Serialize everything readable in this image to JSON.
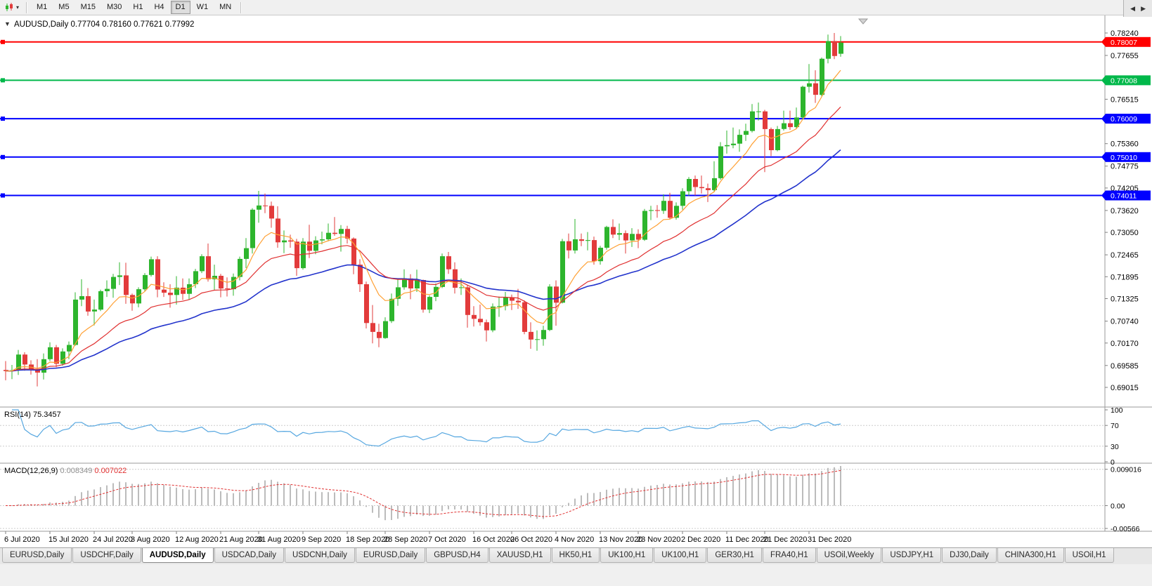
{
  "icons": {
    "menu_arrow": "▼",
    "toolbar_dropdown": "▾",
    "tab_scroll_left": "◀",
    "tab_scroll_right": "▶"
  },
  "toolbar": {
    "timeframes": [
      "M1",
      "M5",
      "M15",
      "M30",
      "H1",
      "H4",
      "D1",
      "W1",
      "MN"
    ],
    "active_timeframe": "D1"
  },
  "chart": {
    "title": "AUDUSD,Daily",
    "ohlc": "0.77704 0.78160 0.77621 0.77992"
  },
  "chart_data": {
    "type": "candlestick",
    "symbol": "AUDUSD",
    "timeframe": "Daily",
    "current_bar": {
      "open": "0.77704",
      "high": "0.78160",
      "low": "0.77621",
      "close": "0.77992"
    },
    "bull_color": "#2db52d",
    "bear_color": "#e23b3b",
    "y_ticks": [
      "0.78240",
      "0.77655",
      "0.76515",
      "0.75360",
      "0.74775",
      "0.74205",
      "0.73620",
      "0.73050",
      "0.72465",
      "0.71895",
      "0.71325",
      "0.70740",
      "0.70170",
      "0.69585",
      "0.69015"
    ],
    "hlines": [
      {
        "price": 0.78007,
        "label": "0.78007",
        "color": "#ff0000"
      },
      {
        "price": 0.77008,
        "label": "0.77008",
        "color": "#00b84a"
      },
      {
        "price": 0.76009,
        "label": "0.76009",
        "color": "#0000ff"
      },
      {
        "price": 0.7501,
        "label": "0.75010",
        "color": "#0000ff"
      },
      {
        "price": 0.74011,
        "label": "0.74011",
        "color": "#0000ff"
      }
    ],
    "moving_averages": [
      {
        "name": "slow",
        "period": 40,
        "color": "#2233cc",
        "width": 1.6
      },
      {
        "name": "mid",
        "period": 20,
        "color": "#e03030",
        "width": 1.2
      },
      {
        "name": "fast",
        "period": 8,
        "color": "#ffa033",
        "width": 1.2
      }
    ],
    "rsi": {
      "label": "RSI(14)",
      "value": "75.3457",
      "period": 14,
      "levels": [
        "100",
        "70",
        "30",
        "0"
      ],
      "dashed_levels": [
        70,
        30
      ],
      "color": "#56a7e0"
    },
    "macd": {
      "label": "MACD(12,26,9)",
      "macd_value": "0.008349",
      "signal_value": "0.007022",
      "axis": [
        "0.009016",
        "0.00",
        "-0.00566"
      ],
      "histogram_color": "#bcbcbc",
      "signal_color": "#e03030"
    },
    "x_labels": [
      {
        "index": 0,
        "label": "6 Jul 2020"
      },
      {
        "index": 7,
        "label": "15 Jul 2020"
      },
      {
        "index": 14,
        "label": "24 Jul 2020"
      },
      {
        "index": 20,
        "label": "3 Aug 2020"
      },
      {
        "index": 27,
        "label": "12 Aug 2020"
      },
      {
        "index": 34,
        "label": "21 Aug 2020"
      },
      {
        "index": 40,
        "label": "31 Aug 2020"
      },
      {
        "index": 47,
        "label": "9 Sep 2020"
      },
      {
        "index": 54,
        "label": "18 Sep 2020"
      },
      {
        "index": 60,
        "label": "28 Sep 2020"
      },
      {
        "index": 67,
        "label": "7 Oct 2020"
      },
      {
        "index": 74,
        "label": "16 Oct 2020"
      },
      {
        "index": 80,
        "label": "26 Oct 2020"
      },
      {
        "index": 87,
        "label": "4 Nov 2020"
      },
      {
        "index": 94,
        "label": "13 Nov 2020"
      },
      {
        "index": 100,
        "label": "23 Nov 2020"
      },
      {
        "index": 107,
        "label": "2 Dec 2020"
      },
      {
        "index": 114,
        "label": "11 Dec 2020"
      },
      {
        "index": 120,
        "label": "21 Dec 2020"
      },
      {
        "index": 127,
        "label": "31 Dec 2020"
      }
    ],
    "candles": [
      [
        0.6947,
        0.697,
        0.692,
        0.6944
      ],
      [
        0.6944,
        0.696,
        0.6923,
        0.6946
      ],
      [
        0.6946,
        0.6999,
        0.6934,
        0.6987
      ],
      [
        0.6987,
        0.6993,
        0.6945,
        0.6961
      ],
      [
        0.6961,
        0.6972,
        0.6935,
        0.6949
      ],
      [
        0.6949,
        0.6975,
        0.6904,
        0.694
      ],
      [
        0.694,
        0.699,
        0.6922,
        0.6975
      ],
      [
        0.6975,
        0.7019,
        0.697,
        0.7006
      ],
      [
        0.7006,
        0.7012,
        0.6954,
        0.6963
      ],
      [
        0.6963,
        0.7003,
        0.6958,
        0.6995
      ],
      [
        0.6995,
        0.7021,
        0.6975,
        0.7012
      ],
      [
        0.7012,
        0.7149,
        0.701,
        0.713
      ],
      [
        0.713,
        0.7183,
        0.7113,
        0.7139
      ],
      [
        0.7139,
        0.716,
        0.7088,
        0.7099
      ],
      [
        0.7099,
        0.713,
        0.7063,
        0.7104
      ],
      [
        0.7104,
        0.7156,
        0.71,
        0.7152
      ],
      [
        0.7152,
        0.718,
        0.7137,
        0.7158
      ],
      [
        0.7158,
        0.7197,
        0.7135,
        0.7189
      ],
      [
        0.7189,
        0.7227,
        0.7168,
        0.7193
      ],
      [
        0.7193,
        0.7226,
        0.7119,
        0.7142
      ],
      [
        0.7142,
        0.7146,
        0.7101,
        0.712
      ],
      [
        0.712,
        0.7162,
        0.711,
        0.7157
      ],
      [
        0.7157,
        0.7199,
        0.7151,
        0.7194
      ],
      [
        0.7194,
        0.7242,
        0.719,
        0.7235
      ],
      [
        0.7235,
        0.7243,
        0.7136,
        0.7156
      ],
      [
        0.7156,
        0.7175,
        0.7137,
        0.7148
      ],
      [
        0.7148,
        0.717,
        0.7109,
        0.7142
      ],
      [
        0.7142,
        0.7191,
        0.7117,
        0.7161
      ],
      [
        0.7161,
        0.7185,
        0.7129,
        0.7145
      ],
      [
        0.7145,
        0.7185,
        0.713,
        0.717
      ],
      [
        0.717,
        0.721,
        0.716,
        0.7204
      ],
      [
        0.7204,
        0.7248,
        0.7199,
        0.7243
      ],
      [
        0.7243,
        0.7276,
        0.7177,
        0.7183
      ],
      [
        0.7183,
        0.7221,
        0.7155,
        0.7192
      ],
      [
        0.7192,
        0.7197,
        0.7136,
        0.7159
      ],
      [
        0.7159,
        0.7188,
        0.7138,
        0.7157
      ],
      [
        0.7157,
        0.7198,
        0.714,
        0.7189
      ],
      [
        0.7189,
        0.7242,
        0.718,
        0.7236
      ],
      [
        0.7236,
        0.729,
        0.7212,
        0.7264
      ],
      [
        0.7264,
        0.7368,
        0.725,
        0.7364
      ],
      [
        0.7364,
        0.7413,
        0.733,
        0.7375
      ],
      [
        0.7375,
        0.7406,
        0.7355,
        0.7374
      ],
      [
        0.7374,
        0.7385,
        0.7317,
        0.7341
      ],
      [
        0.7341,
        0.7373,
        0.7265,
        0.7279
      ],
      [
        0.7279,
        0.731,
        0.7251,
        0.7284
      ],
      [
        0.7284,
        0.7299,
        0.7265,
        0.7281
      ],
      [
        0.7281,
        0.7288,
        0.7192,
        0.7212
      ],
      [
        0.7212,
        0.729,
        0.7208,
        0.7281
      ],
      [
        0.7281,
        0.7325,
        0.7238,
        0.7257
      ],
      [
        0.7257,
        0.7295,
        0.7248,
        0.7284
      ],
      [
        0.7284,
        0.7307,
        0.7274,
        0.7287
      ],
      [
        0.7287,
        0.7328,
        0.7282,
        0.7304
      ],
      [
        0.7304,
        0.7345,
        0.7296,
        0.7301
      ],
      [
        0.7301,
        0.7324,
        0.7255,
        0.7314
      ],
      [
        0.7314,
        0.7322,
        0.7276,
        0.7289
      ],
      [
        0.7289,
        0.7292,
        0.7196,
        0.7221
      ],
      [
        0.7221,
        0.7235,
        0.715,
        0.717
      ],
      [
        0.717,
        0.7177,
        0.7055,
        0.7069
      ],
      [
        0.7069,
        0.7116,
        0.7016,
        0.7046
      ],
      [
        0.7046,
        0.7067,
        0.7006,
        0.703
      ],
      [
        0.703,
        0.7084,
        0.7028,
        0.7074
      ],
      [
        0.7074,
        0.7146,
        0.7069,
        0.7132
      ],
      [
        0.7132,
        0.7185,
        0.7114,
        0.7162
      ],
      [
        0.7162,
        0.7209,
        0.7156,
        0.7185
      ],
      [
        0.7185,
        0.7196,
        0.7131,
        0.7159
      ],
      [
        0.7159,
        0.7208,
        0.715,
        0.7181
      ],
      [
        0.7181,
        0.7182,
        0.7096,
        0.7104
      ],
      [
        0.7104,
        0.7141,
        0.7095,
        0.7137
      ],
      [
        0.7137,
        0.7172,
        0.7126,
        0.7163
      ],
      [
        0.7163,
        0.725,
        0.716,
        0.7243
      ],
      [
        0.7243,
        0.7254,
        0.7197,
        0.7209
      ],
      [
        0.7209,
        0.7227,
        0.7146,
        0.7161
      ],
      [
        0.7161,
        0.7185,
        0.7142,
        0.7162
      ],
      [
        0.7162,
        0.7168,
        0.7057,
        0.709
      ],
      [
        0.709,
        0.7113,
        0.706,
        0.708
      ],
      [
        0.708,
        0.7117,
        0.7062,
        0.7071
      ],
      [
        0.7071,
        0.7078,
        0.7021,
        0.705
      ],
      [
        0.705,
        0.712,
        0.7045,
        0.7112
      ],
      [
        0.7112,
        0.7138,
        0.7085,
        0.7113
      ],
      [
        0.7113,
        0.715,
        0.7102,
        0.7136
      ],
      [
        0.7136,
        0.7143,
        0.7103,
        0.7127
      ],
      [
        0.7127,
        0.7158,
        0.7106,
        0.7123
      ],
      [
        0.7123,
        0.7128,
        0.704,
        0.7046
      ],
      [
        0.7046,
        0.7071,
        0.7002,
        0.7026
      ],
      [
        0.7026,
        0.705,
        0.6997,
        0.7027
      ],
      [
        0.7027,
        0.7062,
        0.701,
        0.7051
      ],
      [
        0.7051,
        0.717,
        0.7048,
        0.7164
      ],
      [
        0.7164,
        0.718,
        0.7062,
        0.7122
      ],
      [
        0.7122,
        0.7288,
        0.712,
        0.7282
      ],
      [
        0.7282,
        0.7302,
        0.7237,
        0.7258
      ],
      [
        0.7258,
        0.734,
        0.725,
        0.7287
      ],
      [
        0.7287,
        0.7302,
        0.7269,
        0.7283
      ],
      [
        0.7283,
        0.7306,
        0.7258,
        0.7285
      ],
      [
        0.7285,
        0.7294,
        0.7221,
        0.723
      ],
      [
        0.723,
        0.727,
        0.7221,
        0.7265
      ],
      [
        0.7265,
        0.7322,
        0.726,
        0.7319
      ],
      [
        0.7319,
        0.7339,
        0.729,
        0.7299
      ],
      [
        0.7299,
        0.7328,
        0.7285,
        0.7303
      ],
      [
        0.7303,
        0.731,
        0.725,
        0.7284
      ],
      [
        0.7284,
        0.7316,
        0.7267,
        0.7301
      ],
      [
        0.7301,
        0.7313,
        0.7264,
        0.7286
      ],
      [
        0.7286,
        0.7366,
        0.7283,
        0.7361
      ],
      [
        0.7361,
        0.7374,
        0.7337,
        0.7363
      ],
      [
        0.7363,
        0.7376,
        0.7343,
        0.7361
      ],
      [
        0.7361,
        0.7404,
        0.7353,
        0.7387
      ],
      [
        0.7387,
        0.7408,
        0.7339,
        0.7343
      ],
      [
        0.7343,
        0.7383,
        0.7338,
        0.7374
      ],
      [
        0.7374,
        0.742,
        0.7364,
        0.7412
      ],
      [
        0.7412,
        0.7449,
        0.74,
        0.7444
      ],
      [
        0.7444,
        0.7453,
        0.7401,
        0.7423
      ],
      [
        0.7423,
        0.7453,
        0.7406,
        0.742
      ],
      [
        0.742,
        0.7432,
        0.7384,
        0.7415
      ],
      [
        0.7415,
        0.749,
        0.741,
        0.7446
      ],
      [
        0.7446,
        0.754,
        0.7442,
        0.7529
      ],
      [
        0.7529,
        0.757,
        0.751,
        0.7532
      ],
      [
        0.7532,
        0.7578,
        0.7524,
        0.7536
      ],
      [
        0.7536,
        0.7573,
        0.7515,
        0.7559
      ],
      [
        0.7559,
        0.7588,
        0.7543,
        0.7569
      ],
      [
        0.7569,
        0.7639,
        0.7565,
        0.762
      ],
      [
        0.762,
        0.7643,
        0.7596,
        0.762
      ],
      [
        0.762,
        0.7624,
        0.7462,
        0.7574
      ],
      [
        0.7574,
        0.7578,
        0.7504,
        0.7519
      ],
      [
        0.7519,
        0.7582,
        0.7516,
        0.7574
      ],
      [
        0.7574,
        0.7622,
        0.757,
        0.7589
      ],
      [
        0.7589,
        0.7622,
        0.7572,
        0.7579
      ],
      [
        0.7579,
        0.763,
        0.7575,
        0.7604
      ],
      [
        0.7604,
        0.7687,
        0.7599,
        0.7684
      ],
      [
        0.7684,
        0.7743,
        0.7669,
        0.7693
      ],
      [
        0.7693,
        0.7727,
        0.7642,
        0.7663
      ],
      [
        0.7663,
        0.776,
        0.7659,
        0.7757
      ],
      [
        0.7757,
        0.782,
        0.7745,
        0.7803
      ],
      [
        0.7803,
        0.7824,
        0.7756,
        0.7764
      ],
      [
        0.777,
        0.7816,
        0.7762,
        0.7799
      ]
    ]
  },
  "tabs": {
    "active_index": 2,
    "items": [
      "EURUSD,Daily",
      "USDCHF,Daily",
      "AUDUSD,Daily",
      "USDCAD,Daily",
      "USDCNH,Daily",
      "EURUSD,Daily",
      "GBPUSD,H4",
      "XAUUSD,H1",
      "HK50,H1",
      "UK100,H1",
      "UK100,H1",
      "GER30,H1",
      "FRA40,H1",
      "USOil,Weekly",
      "USDJPY,H1",
      "DJ30,Daily",
      "CHINA300,H1",
      "USOil,H1"
    ]
  }
}
